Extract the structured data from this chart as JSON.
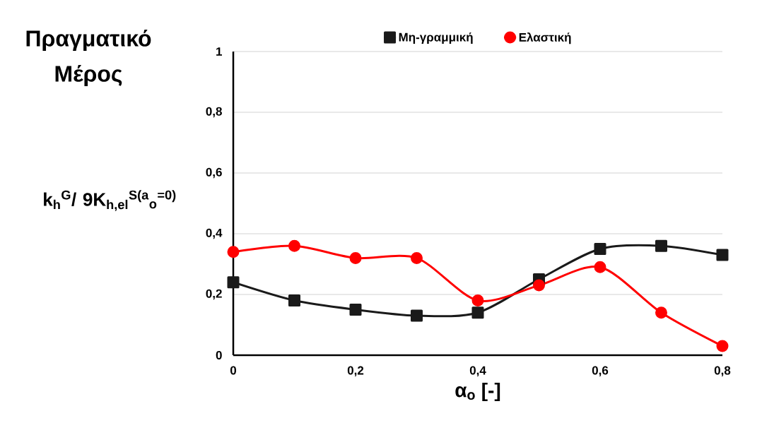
{
  "chart_data": {
    "type": "line",
    "title": "Πραγματικό Μέρος",
    "ylabel": "k$_{h}$$^{G}$/ 9K$_{h,el}$$^{S(a}$$_{o}$$^{=0)}$",
    "xlabel": "α$_{o}$ [-]",
    "x": [
      0,
      0.1,
      0.2,
      0.3,
      0.4,
      0.5,
      0.6,
      0.7,
      0.8
    ],
    "series": [
      {
        "name": "Μη-γραμμική",
        "color": "#1a1a1a",
        "marker": "square",
        "values": [
          0.24,
          0.18,
          0.15,
          0.13,
          0.14,
          0.25,
          0.35,
          0.36,
          0.33
        ]
      },
      {
        "name": "Ελαστική",
        "color": "#ff0000",
        "marker": "circle",
        "values": [
          0.34,
          0.36,
          0.32,
          0.32,
          0.18,
          0.23,
          0.29,
          0.14,
          0.03
        ]
      }
    ],
    "xlim": [
      0,
      0.8
    ],
    "ylim": [
      0,
      1
    ],
    "xticks": [
      0,
      {
        "value": 0.2,
        "label": "0,2"
      },
      {
        "value": 0.4,
        "label": "0,4"
      },
      {
        "value": 0.6,
        "label": "0,6"
      },
      {
        "value": 0.8,
        "label": "0,8"
      }
    ],
    "yticks": [
      0,
      {
        "value": 0.2,
        "label": "0,2"
      },
      {
        "value": 0.4,
        "label": "0,4"
      },
      {
        "value": 0.6,
        "label": "0,6"
      },
      {
        "value": 0.8,
        "label": "0,8"
      },
      1
    ],
    "grid": "y",
    "legend": "top"
  }
}
